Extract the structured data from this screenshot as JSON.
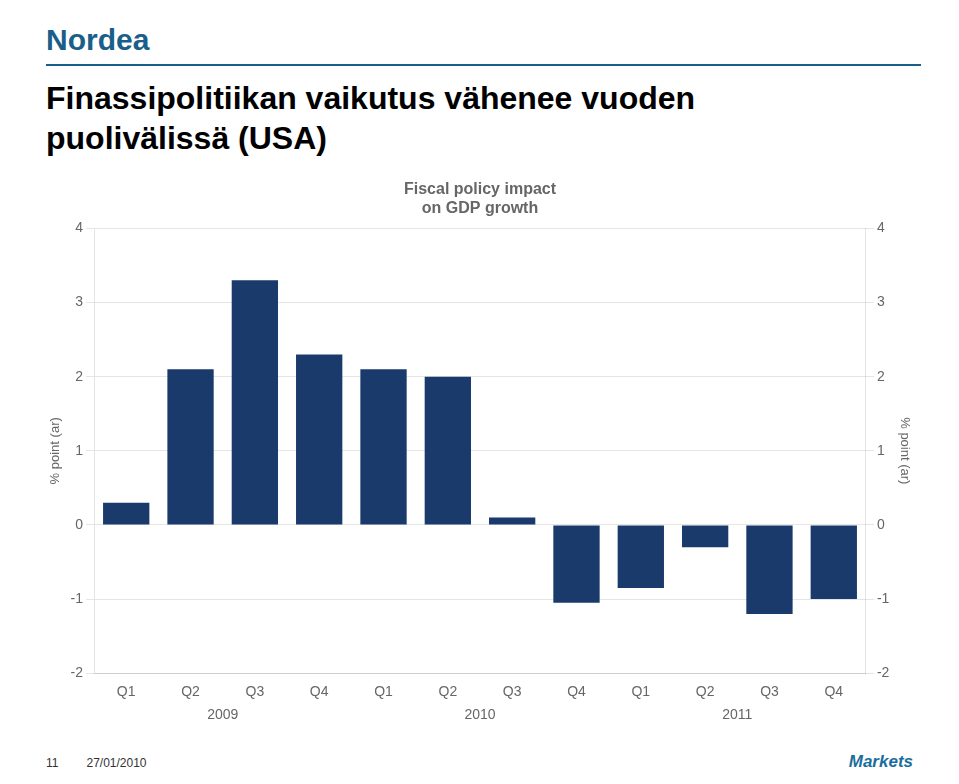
{
  "chart_data": {
    "type": "bar",
    "title": [
      "Finassipolitiikan vaikutus vähenee vuoden",
      "puolivälissä (USA)"
    ],
    "subtitle": [
      "Fiscal policy impact",
      "on GDP growth"
    ],
    "categories": [
      "Q1",
      "Q2",
      "Q3",
      "Q4",
      "Q1",
      "Q2",
      "Q3",
      "Q4",
      "Q1",
      "Q2",
      "Q3",
      "Q4"
    ],
    "x_groups": [
      "2009",
      "2010",
      "2011"
    ],
    "values": [
      0.3,
      2.1,
      3.3,
      2.3,
      2.1,
      2.0,
      0.1,
      -1.05,
      -0.85,
      -0.3,
      -1.2,
      -1.0
    ],
    "color": "#1a3a6b",
    "ylim": [
      -2,
      4
    ],
    "yticks": [
      -2,
      -1,
      0,
      1,
      2,
      3,
      4
    ],
    "y2lim": [
      -2,
      4
    ],
    "y2ticks": [
      -2,
      -1,
      0,
      1,
      2,
      3,
      4
    ],
    "ylabel": "% point (ar)",
    "y2label": "% point (ar)",
    "grid": true,
    "annotations": {
      "logo": "Nordea",
      "footer_left": [
        "11",
        "27/01/2010"
      ],
      "footer_right": "Markets"
    }
  }
}
